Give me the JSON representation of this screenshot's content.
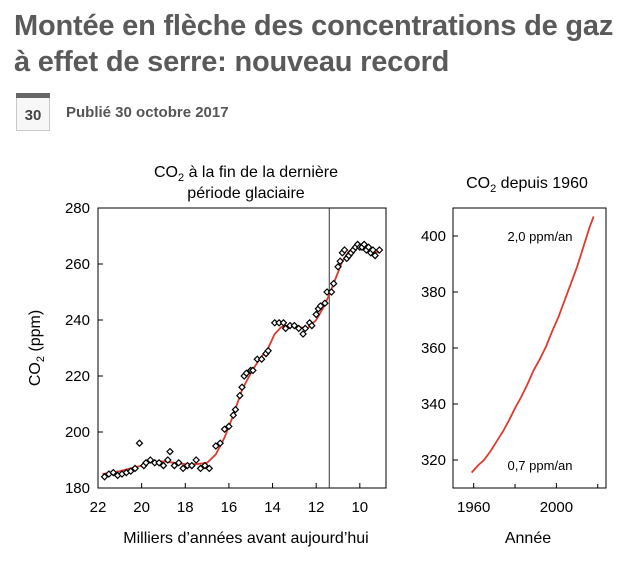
{
  "article": {
    "title": "Montée en flèche des concentrations de gaz à effet de serre: nouveau record",
    "date_day": "30",
    "published": "Publié 30 octobre 2017"
  },
  "colors": {
    "title": "#5a5a5a",
    "fit_line": "#e0392e",
    "marker": "#000000"
  },
  "chart_data": [
    {
      "type": "scatter",
      "title_line1_prefix": "CO",
      "title_line1_sub": "2",
      "title_line1_suffix": " à la fin de la dernière",
      "title_line2": "période glaciaire",
      "ylabel_prefix": "CO",
      "ylabel_sub": "2",
      "ylabel_suffix": " (ppm)",
      "xlabel": "Milliers d’années avant aujourd’hui",
      "xlim": [
        22,
        8.8
      ],
      "ylim": [
        180,
        280
      ],
      "x_ticks": [
        22,
        20,
        18,
        16,
        14,
        12,
        10
      ],
      "y_ticks": [
        180,
        200,
        220,
        240,
        260,
        280
      ],
      "vertical_marker_x": 11.4,
      "series": [
        {
          "name": "measurements",
          "points": [
            [
              21.7,
              184
            ],
            [
              21.5,
              185
            ],
            [
              21.3,
              185.5
            ],
            [
              21.1,
              184.5
            ],
            [
              20.9,
              185
            ],
            [
              20.7,
              185.5
            ],
            [
              20.5,
              186
            ],
            [
              20.3,
              187
            ],
            [
              20.1,
              196
            ],
            [
              19.9,
              188
            ],
            [
              19.8,
              189
            ],
            [
              19.6,
              190
            ],
            [
              19.4,
              189
            ],
            [
              19.2,
              189
            ],
            [
              19.0,
              188
            ],
            [
              18.8,
              190
            ],
            [
              18.7,
              193
            ],
            [
              18.5,
              188
            ],
            [
              18.3,
              189
            ],
            [
              18.1,
              187
            ],
            [
              17.9,
              188
            ],
            [
              17.7,
              188
            ],
            [
              17.5,
              190
            ],
            [
              17.3,
              187
            ],
            [
              17.1,
              188
            ],
            [
              16.9,
              187
            ],
            [
              16.6,
              195
            ],
            [
              16.4,
              196
            ],
            [
              16.2,
              201
            ],
            [
              16.0,
              202
            ],
            [
              15.8,
              206
            ],
            [
              15.7,
              208
            ],
            [
              15.5,
              213
            ],
            [
              15.4,
              216
            ],
            [
              15.3,
              220
            ],
            [
              15.2,
              221
            ],
            [
              15.0,
              222
            ],
            [
              14.9,
              222
            ],
            [
              14.7,
              226
            ],
            [
              14.5,
              226
            ],
            [
              14.3,
              228
            ],
            [
              14.2,
              229
            ],
            [
              13.9,
              239
            ],
            [
              13.7,
              239
            ],
            [
              13.5,
              239
            ],
            [
              13.4,
              237
            ],
            [
              13.2,
              238
            ],
            [
              13.0,
              238
            ],
            [
              12.8,
              237
            ],
            [
              12.6,
              235
            ],
            [
              12.5,
              237
            ],
            [
              12.3,
              239
            ],
            [
              12.2,
              238
            ],
            [
              12.0,
              242
            ],
            [
              11.9,
              244
            ],
            [
              11.8,
              245
            ],
            [
              11.6,
              246
            ],
            [
              11.5,
              250
            ],
            [
              11.3,
              250
            ],
            [
              11.2,
              253
            ],
            [
              11.0,
              259
            ],
            [
              10.9,
              261
            ],
            [
              10.8,
              264
            ],
            [
              10.7,
              265
            ],
            [
              10.6,
              262
            ],
            [
              10.5,
              263
            ],
            [
              10.4,
              264
            ],
            [
              10.3,
              265
            ],
            [
              10.2,
              266
            ],
            [
              10.1,
              267
            ],
            [
              10.0,
              266
            ],
            [
              9.9,
              266
            ],
            [
              9.8,
              267
            ],
            [
              9.7,
              265
            ],
            [
              9.6,
              266
            ],
            [
              9.5,
              264
            ],
            [
              9.4,
              265
            ],
            [
              9.3,
              263
            ],
            [
              9.1,
              265
            ]
          ]
        },
        {
          "name": "trend",
          "points": [
            [
              21.8,
              185
            ],
            [
              21.0,
              186
            ],
            [
              20.0,
              188
            ],
            [
              19.5,
              189.5
            ],
            [
              19.0,
              189.5
            ],
            [
              18.5,
              189
            ],
            [
              18.0,
              188.5
            ],
            [
              17.5,
              188.5
            ],
            [
              17.0,
              189
            ],
            [
              16.6,
              192
            ],
            [
              16.2,
              198
            ],
            [
              15.8,
              206
            ],
            [
              15.4,
              215
            ],
            [
              15.0,
              221
            ],
            [
              14.6,
              226
            ],
            [
              14.2,
              230
            ],
            [
              13.9,
              235
            ],
            [
              13.6,
              237.5
            ],
            [
              13.2,
              238
            ],
            [
              12.8,
              237.5
            ],
            [
              12.4,
              237
            ],
            [
              12.0,
              240
            ],
            [
              11.7,
              244
            ],
            [
              11.4,
              249
            ],
            [
              11.1,
              255
            ],
            [
              10.8,
              261
            ],
            [
              10.5,
              264.5
            ],
            [
              10.2,
              266
            ],
            [
              9.8,
              266
            ],
            [
              9.4,
              264.5
            ],
            [
              9.1,
              264
            ]
          ]
        }
      ]
    },
    {
      "type": "line",
      "title_prefix": "CO",
      "title_sub": "2",
      "title_suffix": " depuis 1960",
      "xlabel": "Année",
      "xlim": [
        1950,
        2024
      ],
      "ylim": [
        310,
        410
      ],
      "x_ticks": [
        1960,
        2000
      ],
      "x_minor_ticks": [
        1980,
        2020
      ],
      "y_ticks": [
        320,
        340,
        360,
        380,
        400
      ],
      "annotations": [
        "2,0 ppm/an",
        "0,7 ppm/an"
      ],
      "series": [
        {
          "name": "Mauna Loa",
          "points": [
            [
              1959,
              315.5
            ],
            [
              1962,
              318
            ],
            [
              1965,
              320
            ],
            [
              1968,
              323
            ],
            [
              1971,
              326.5
            ],
            [
              1974,
              330
            ],
            [
              1977,
              334
            ],
            [
              1980,
              338.5
            ],
            [
              1983,
              342.5
            ],
            [
              1986,
              347
            ],
            [
              1989,
              352
            ],
            [
              1992,
              356
            ],
            [
              1995,
              360.5
            ],
            [
              1998,
              366
            ],
            [
              2001,
              371
            ],
            [
              2004,
              377
            ],
            [
              2007,
              383
            ],
            [
              2010,
              389
            ],
            [
              2013,
              396
            ],
            [
              2016,
              403
            ],
            [
              2018,
              407
            ]
          ]
        }
      ]
    }
  ]
}
